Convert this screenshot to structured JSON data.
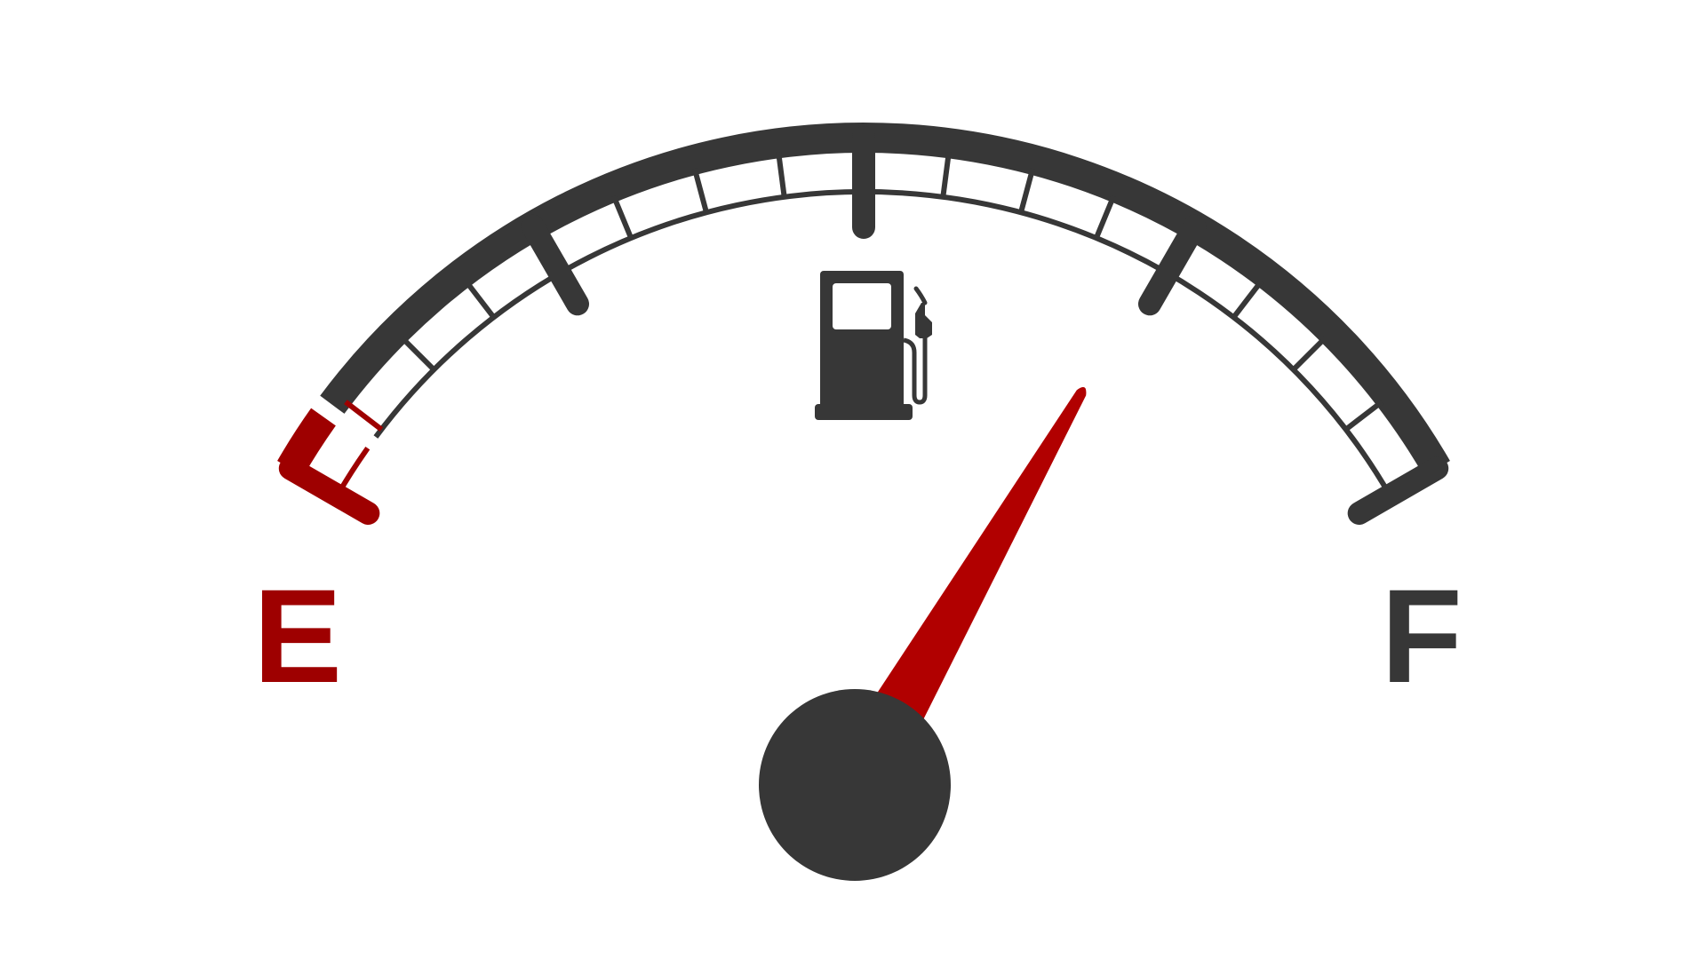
{
  "gauge": {
    "empty_label": "E",
    "full_label": "F",
    "fuel_level": 0.75,
    "icon": "fuel-pump-icon",
    "major_ticks": 5,
    "minor_per_segment": 4,
    "reserve_fraction": 0.0417,
    "colors": {
      "primary": "#373737",
      "warning": "#9e0000",
      "needle": "#b10000",
      "background": "#ffffff"
    }
  }
}
